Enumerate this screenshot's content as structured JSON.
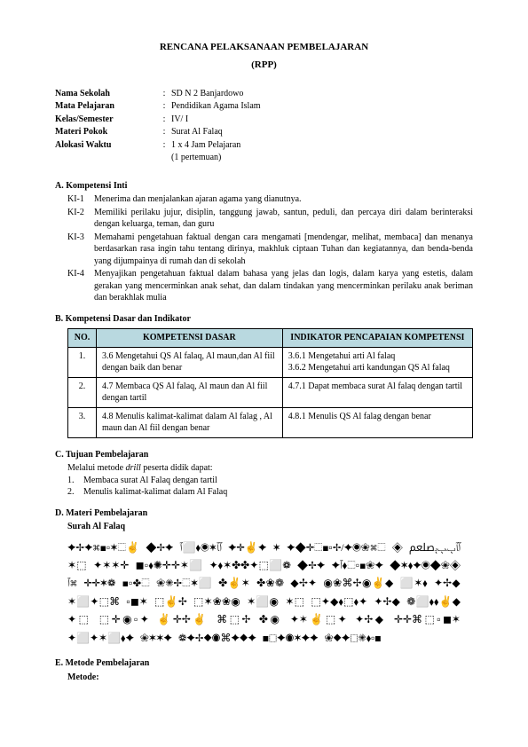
{
  "title": "RENCANA PELAKSANAAN PEMBELAJARAN",
  "subtitle": "(RPP)",
  "info": {
    "rows": [
      {
        "label": "Nama Sekolah",
        "value": "SD N 2 Banjardowo"
      },
      {
        "label": "Mata Pelajaran",
        "value": "Pendidikan Agama Islam"
      },
      {
        "label": "Kelas/Semester",
        "value": "IV/ I"
      },
      {
        "label": "Materi Pokok",
        "value": "Surat Al Falaq"
      },
      {
        "label": "Alokasi Waktu",
        "value": "1 x 4 Jam Pelajaran"
      }
    ],
    "extra": "(1 pertemuan)"
  },
  "sectionA": {
    "head": "A.   Kompetensi Inti",
    "items": [
      {
        "label": "KI-1",
        "text": "Menerima dan menjalankan ajaran agama yang dianutnya."
      },
      {
        "label": "KI-2",
        "text": "Memiliki perilaku jujur, disiplin, tanggung jawab, santun, peduli, dan percaya diri dalam berinteraksi dengan keluarga, teman, dan guru"
      },
      {
        "label": "KI-3",
        "text": "Memahami pengetahuan faktual dengan cara mengamati [mendengar, melihat, membaca] dan menanya berdasarkan rasa ingin tahu tentang dirinya, makhluk ciptaan Tuhan dan kegiatannya, dan benda-benda yang dijumpainya di rumah dan di sekolah"
      },
      {
        "label": "KI-4",
        "text": "Menyajikan pengetahuan faktual dalam bahasa yang jelas dan logis, dalam karya yang estetis, dalam gerakan yang mencerminkan anak sehat, dan dalam tindakan yang mencerminkan perilaku anak beriman dan berakhlak mulia"
      }
    ]
  },
  "sectionB": {
    "head": "B.   Kompetensi Dasar dan Indikator",
    "headers": {
      "no": "NO.",
      "kd": "KOMPETENSI DASAR",
      "ind": "INDIKATOR PENCAPAIAN KOMPETENSI"
    },
    "rows": [
      {
        "no": "1.",
        "kd": "3.6 Mengetahui QS Al falaq, Al maun,dan Al fiil dengan baik dan benar",
        "ind": "3.6.1 Mengetahui arti Al falaq\n3.6.2 Mengetahui arti kandungan QS Al falaq"
      },
      {
        "no": "2.",
        "kd": "4.7 Membaca QS Al falaq, Al maun dan Al fiil dengan tartil",
        "ind": "4.7.1 Dapat membaca surat Al falaq dengan tartil"
      },
      {
        "no": "3.",
        "kd": "4.8 Menulis kalimat-kalimat dalam Al falag , Al maun dan Al fiil dengan benar",
        "ind": "4.8.1 Menulis QS Al falag dengan benar"
      }
    ]
  },
  "sectionC": {
    "head": "C.   Tujuan Pembelajaran",
    "intro_prefix": "Melalui metode ",
    "intro_italic": "drill",
    "intro_suffix": " peserta didik dapat:",
    "items": [
      {
        "num": "1.",
        "text": "Membaca surat Al Falaq dengan tartil"
      },
      {
        "num": "2.",
        "text": "Menulis kalimat-kalimat dalam Al Falaq"
      }
    ]
  },
  "sectionD": {
    "head": "D.   Materi Pembelajaran",
    "sub": "Surah Al Falaq",
    "arabic": "ﭐﭑﭒﭓﭔﷵ ◈ ⬚⌘❀◉✦/✢▫◼⬚✛◆✦ ✶ ✦✌✛✦ ﭐﭑ✶◉⬧⬜ﭐ ✦✢◆ ✌⬚✶▫◼⌘✦✢✦ ◈❀◆◉✦⬧✶◆ ✦❀◼▫⬚⬧ﭐ✦ ✦✢◆ ❁⬜⬚✦✤✤✶⬧✦ ⬜✶✛✛✺⬧▫◼ ✛✶✶✦ ⬚✶ ✢⌘❀◉ ✦✢◆ ❁❀✤ ✶✌✤ ⬜✶⬚✢✺❀ ⬚✤▫◼ ❁✶✛✛ ⌘ﭐ◉✌◆ ⬜✶⬧ ✦✢◆ ✶⬜✦⬚⌘ ▫◼✶ ⬚✌✢ ⬚✶❀❀◉ ✶⬜◉ ✶⬚ ⬚✦◆⬧⬚⬧✦ ✦✢◆ ❁⬜⬧⬧✌◆ ✦⬚ ⬚✛◉▫✦ ✌✛✢✌ ⌘⬚✢ ✤◉ ✦✶✌⬚✦ ✦✢◆ ✛✛⌘⬚▫◼✶ ✦⬜✦✶⬜⬧✦ ❀✶✶✦ ❁✦✢◆◉⌘✦◆✦ ◼⬚✦◉✶✦✦ ❀◆✦⬚✺⬧▫◼"
  },
  "sectionE": {
    "head": "E.   Metode Pembelajaran",
    "sub": "Metode:"
  }
}
